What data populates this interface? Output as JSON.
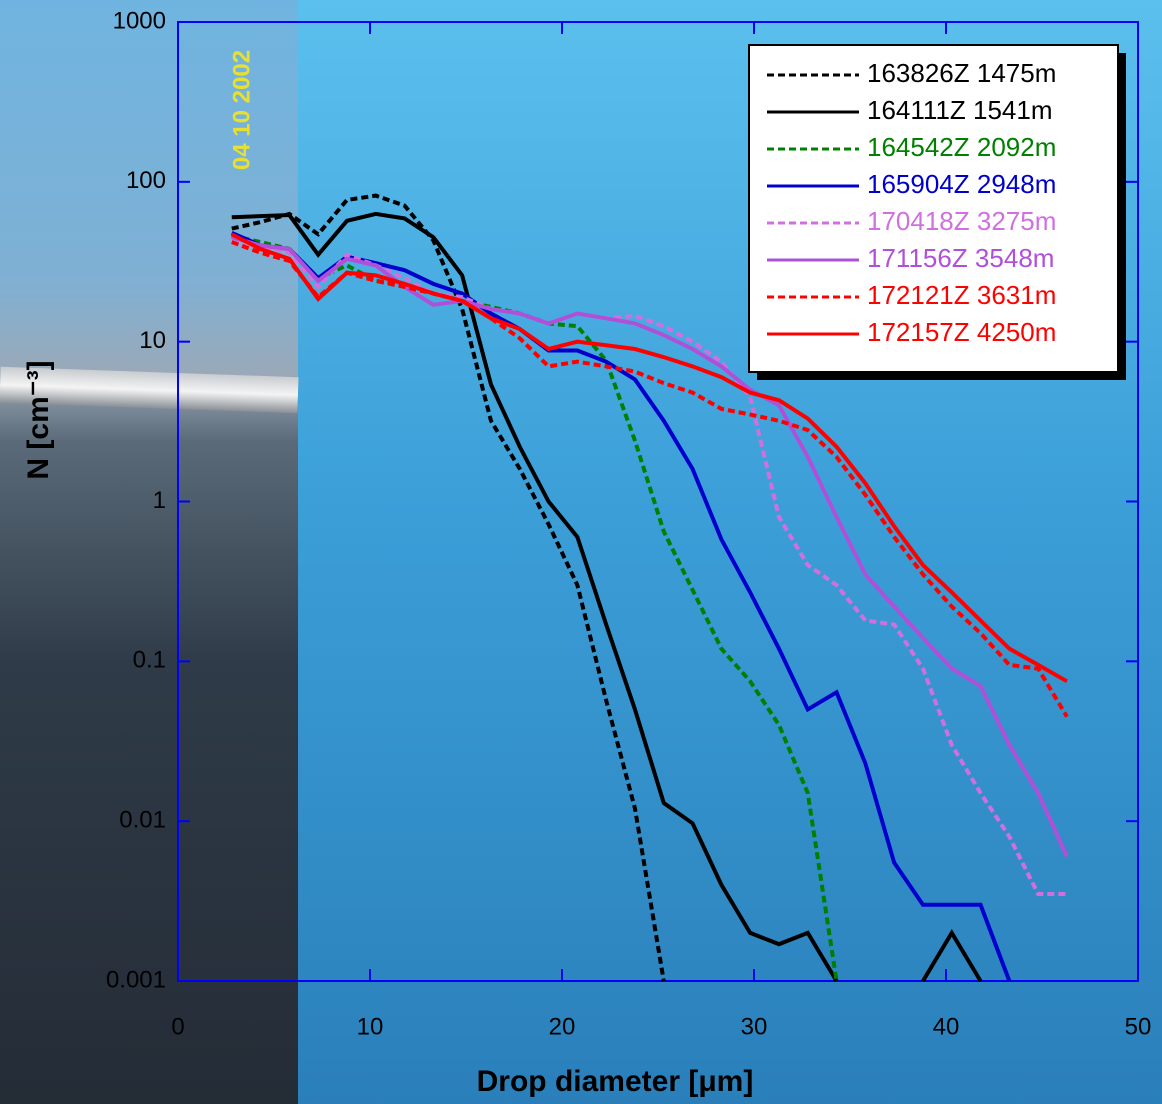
{
  "chart_data": {
    "type": "line",
    "x_label": "Drop diameter [μm]",
    "y_label": "N [cm⁻³]",
    "photo_stamp": "04 10 2002",
    "xlim": [
      0,
      50
    ],
    "xticks": [
      0,
      10,
      20,
      30,
      40,
      50
    ],
    "ylim": [
      0.001,
      1000
    ],
    "yticks": [
      0.001,
      0.01,
      0.1,
      1,
      10,
      100,
      1000
    ],
    "ylog": true,
    "legend": "top-right",
    "x": [
      2.8,
      4.3,
      5.8,
      7.3,
      8.8,
      10.3,
      11.8,
      13.3,
      14.8,
      16.3,
      17.8,
      19.3,
      20.8,
      22.3,
      23.8,
      25.3,
      26.8,
      28.3,
      29.8,
      31.3,
      32.8,
      34.3,
      35.8,
      37.3,
      38.8,
      40.3,
      41.8,
      43.3,
      44.8,
      46.3
    ],
    "series": [
      {
        "name": "163826Z 1475m",
        "color": "#000000",
        "style": "dashed",
        "values": [
          51,
          56,
          63,
          47,
          77,
          82,
          71,
          43,
          16,
          3.2,
          1.6,
          0.72,
          0.3,
          0.057,
          0.012,
          0.001,
          null,
          null,
          null,
          null,
          null,
          null,
          null,
          null,
          null,
          null,
          null,
          null,
          null,
          null
        ]
      },
      {
        "name": "164111Z 1541m",
        "color": "#000000",
        "style": "solid",
        "values": [
          60,
          61,
          62,
          35,
          57,
          63,
          59,
          45,
          26,
          5.4,
          2.2,
          1.0,
          0.6,
          0.17,
          0.05,
          0.013,
          0.0097,
          0.004,
          0.002,
          0.0017,
          0.002,
          0.001,
          null,
          null,
          0.001,
          0.002,
          0.001,
          null,
          null,
          null
        ]
      },
      {
        "name": "164542Z 2092m",
        "color": "#008000",
        "style": "dashed",
        "values": [
          46,
          42,
          38,
          25,
          30,
          24,
          23,
          20,
          18,
          16.5,
          15,
          13,
          12.5,
          7.6,
          2.4,
          0.65,
          0.28,
          0.12,
          0.075,
          0.04,
          0.015,
          0.001,
          null,
          null,
          null,
          null,
          null,
          null,
          null,
          null
        ]
      },
      {
        "name": "165904Z 2948m",
        "color": "#0000cc",
        "style": "solid",
        "values": [
          48,
          40,
          38,
          25,
          34,
          31,
          28,
          23,
          20,
          15,
          12,
          8.8,
          8.8,
          7.5,
          5.8,
          3.2,
          1.6,
          0.58,
          0.27,
          0.12,
          0.05,
          0.064,
          0.023,
          0.0055,
          0.003,
          0.003,
          0.003,
          0.001,
          null,
          null
        ]
      },
      {
        "name": "170418Z 3275m",
        "color": "#d070e0",
        "style": "dashed",
        "values": [
          42,
          40,
          36,
          22,
          35,
          30,
          25,
          20,
          19,
          16,
          15,
          13,
          15,
          14,
          14.5,
          12.5,
          10,
          7.5,
          4.5,
          0.8,
          0.4,
          0.3,
          0.18,
          0.17,
          0.09,
          0.03,
          0.015,
          0.008,
          0.0035,
          0.0035
        ]
      },
      {
        "name": "171156Z 3548m",
        "color": "#b050d8",
        "style": "solid",
        "values": [
          45,
          40,
          38,
          24,
          33,
          30,
          22,
          17,
          18,
          16,
          15,
          13,
          15,
          14,
          13,
          11,
          9,
          7,
          5,
          4,
          1.9,
          0.8,
          0.35,
          0.22,
          0.14,
          0.09,
          0.07,
          0.03,
          0.015,
          0.006
        ]
      },
      {
        "name": "172121Z 3631m",
        "color": "#ff0000",
        "style": "dashed",
        "values": [
          42,
          36,
          32,
          19,
          27,
          24,
          22,
          20,
          18,
          14,
          10.5,
          7,
          7.5,
          7,
          6.5,
          5.5,
          4.8,
          3.8,
          3.5,
          3.2,
          2.8,
          1.9,
          1.1,
          0.6,
          0.35,
          0.22,
          0.15,
          0.095,
          0.09,
          0.045
        ]
      },
      {
        "name": "172157Z 4250m",
        "color": "#ff0000",
        "style": "solid",
        "values": [
          47,
          38,
          33,
          18.5,
          27,
          26,
          23,
          20,
          18,
          14,
          12,
          9,
          10,
          9.5,
          9,
          8,
          7,
          6,
          4.8,
          4.3,
          3.3,
          2.2,
          1.3,
          0.7,
          0.4,
          0.27,
          0.18,
          0.12,
          0.095,
          0.075
        ]
      }
    ]
  }
}
